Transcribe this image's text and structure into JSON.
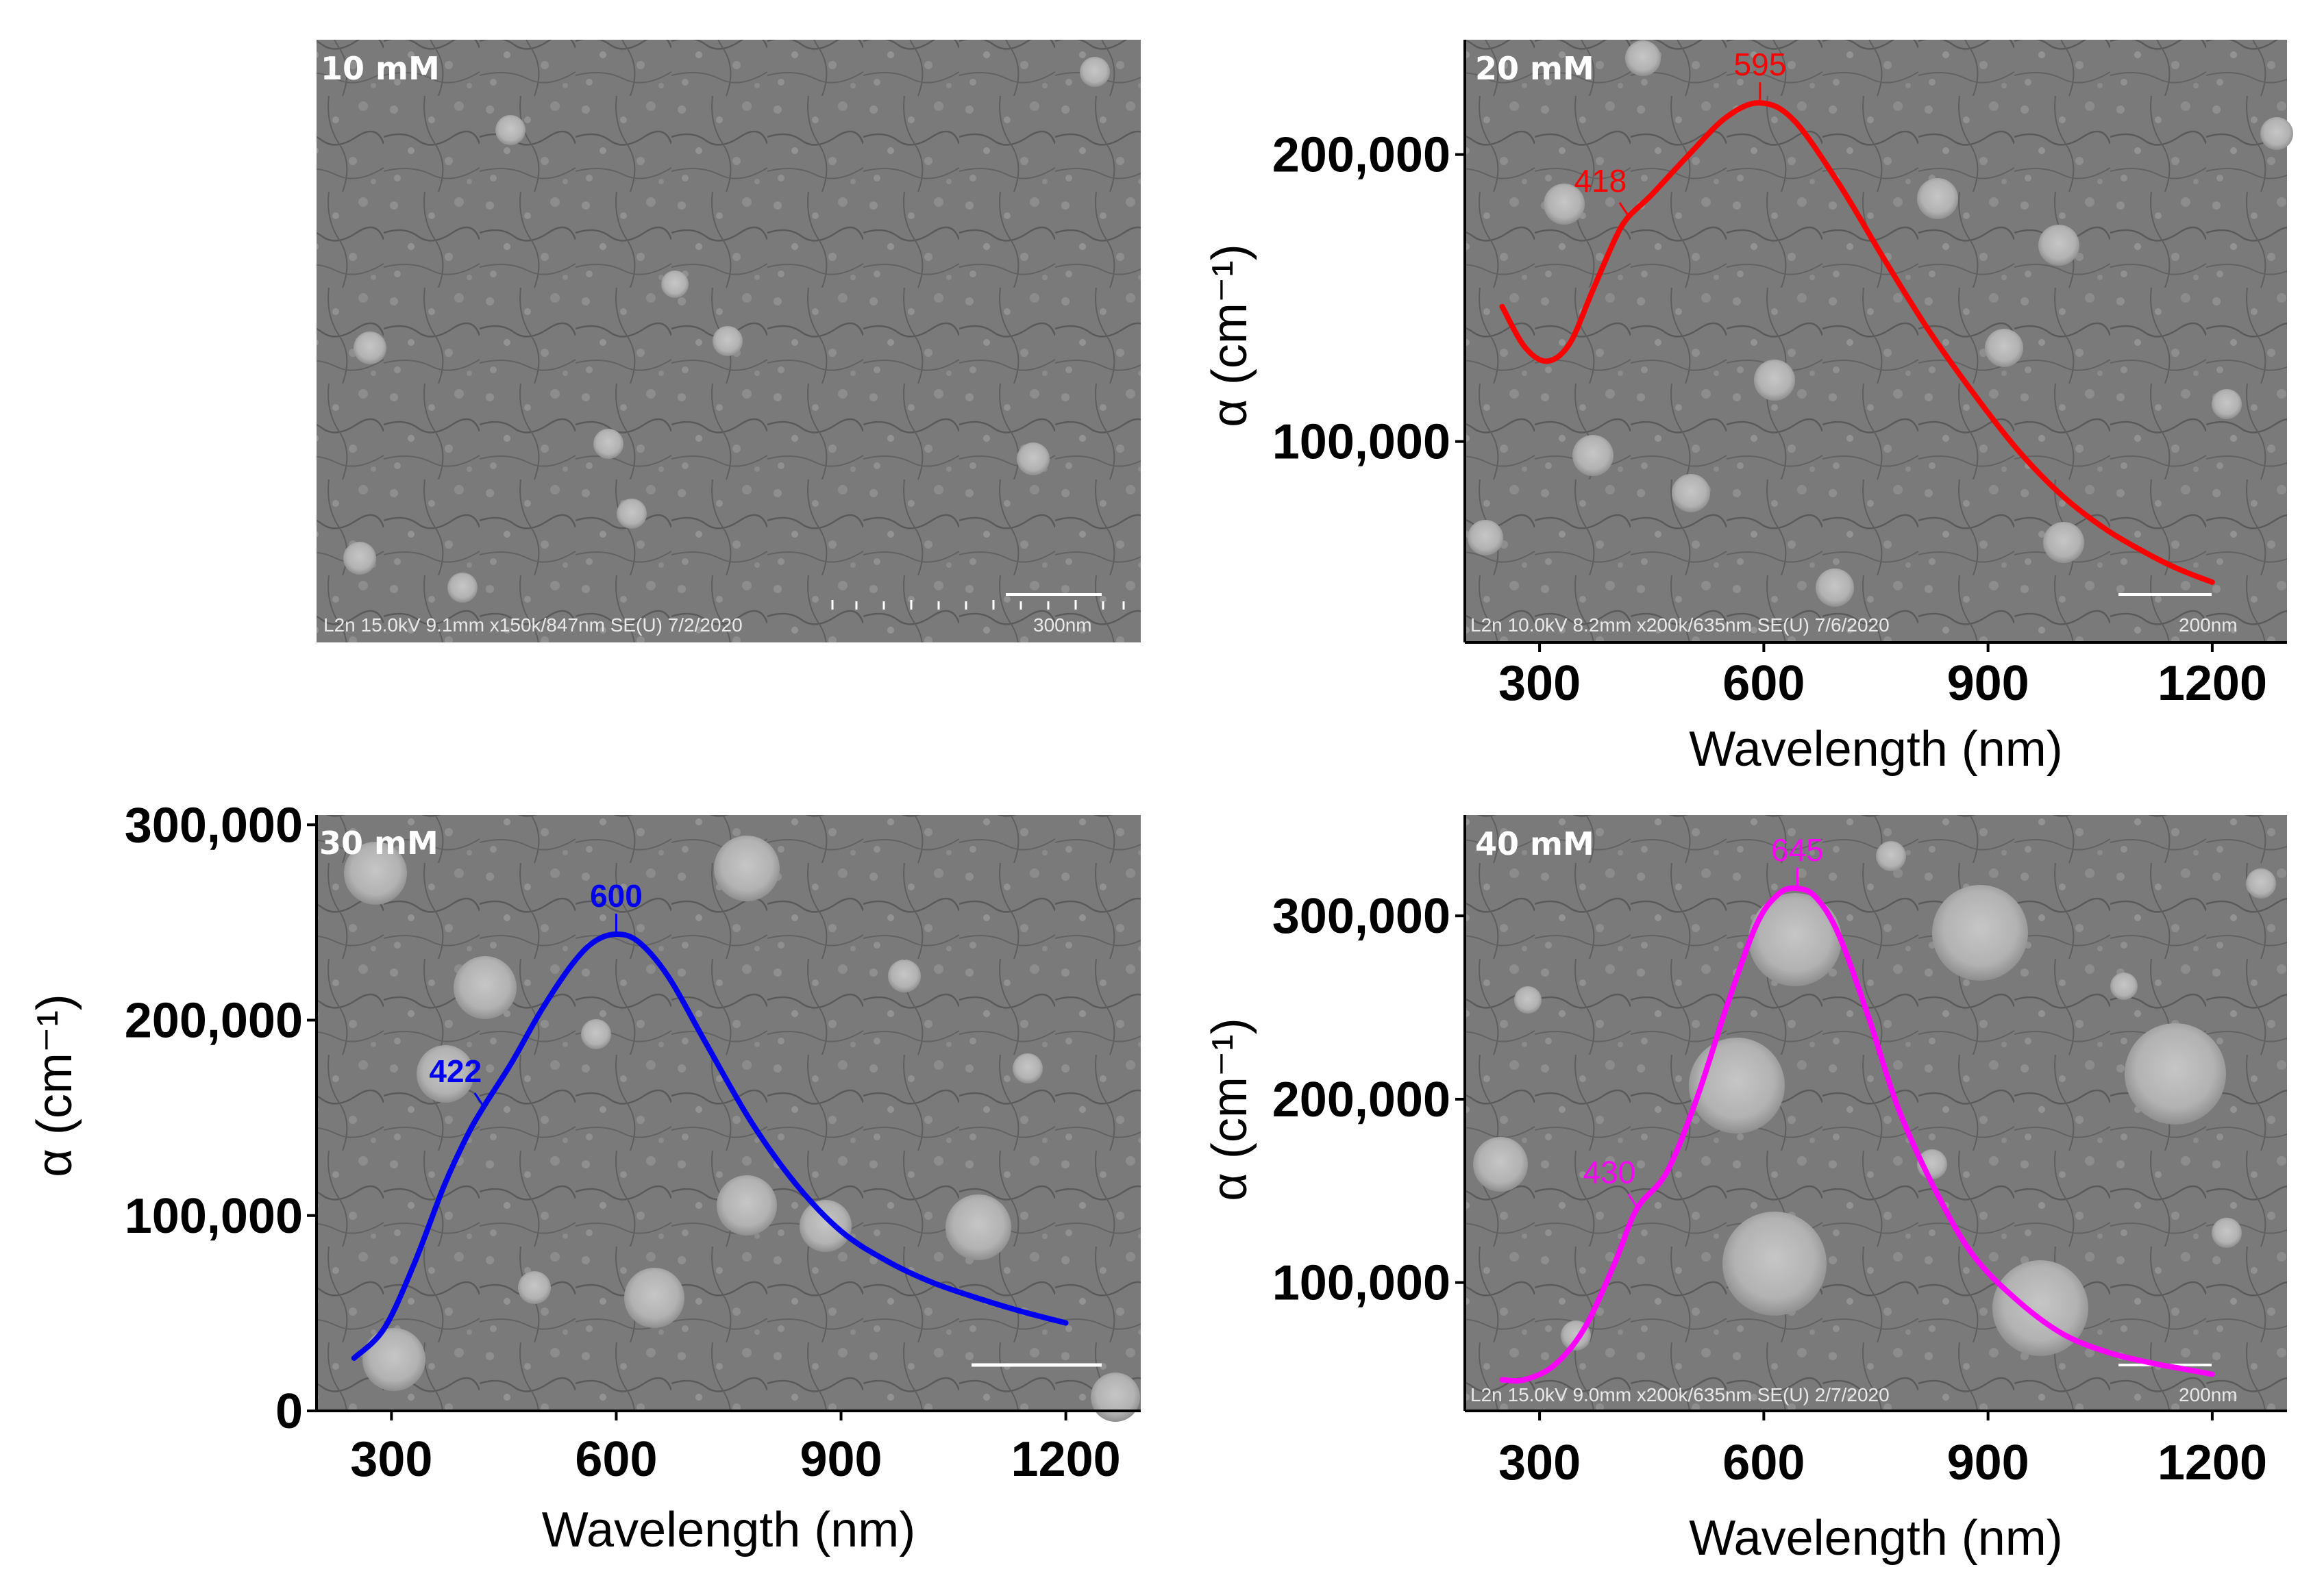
{
  "figure": {
    "panels": [
      {
        "label": "10 mM",
        "sem_info": "L2n 15.0kV 9.1mm x150k/847nm SE(U) 7/2/2020",
        "scale_text": "300nm"
      },
      {
        "label": "20 mM",
        "sem_info": "L2n 10.0kV 8.2mm x200k/635nm SE(U) 7/6/2020",
        "scale_text": "200nm"
      },
      {
        "label": "30 mM",
        "sem_info": "",
        "scale_text": ""
      },
      {
        "label": "40 mM",
        "sem_info": "L2n 15.0kV 9.0mm x200k/635nm SE(U) 2/7/2020",
        "scale_text": "200nm"
      }
    ],
    "colors": {
      "sem_bg": "#7b7b7b",
      "sem_dark": "#4f4f4f",
      "sem_light": "#c9c9c9"
    }
  },
  "chart_data": [
    {
      "type": "line",
      "panel": "20 mM",
      "color": "#ff0000",
      "xlabel": "Wavelength (nm)",
      "ylabel": "α (cm⁻¹)",
      "xlim": [
        200,
        1300
      ],
      "ylim": [
        30000,
        240000
      ],
      "xticks": [
        300,
        600,
        900,
        1200
      ],
      "xtick_labels": [
        "300",
        "600",
        "900",
        "1200"
      ],
      "yticks": [
        100000,
        200000
      ],
      "ytick_labels": [
        "100,000",
        "200,000"
      ],
      "x": [
        250,
        280,
        310,
        340,
        370,
        400,
        418,
        450,
        500,
        550,
        595,
        640,
        700,
        760,
        820,
        880,
        940,
        1000,
        1060,
        1120,
        1160,
        1200
      ],
      "y": [
        147000,
        133000,
        128000,
        134000,
        152000,
        170000,
        178000,
        186000,
        200000,
        213000,
        218000,
        212000,
        190000,
        164000,
        139000,
        117000,
        97000,
        81000,
        69000,
        60000,
        55000,
        51000
      ],
      "annotations": [
        {
          "text": "595",
          "x": 595,
          "y": 218000
        },
        {
          "text": "418",
          "x": 418,
          "y": 178000
        }
      ]
    },
    {
      "type": "line",
      "panel": "30 mM",
      "color": "#0000ee",
      "xlabel": "Wavelength (nm)",
      "ylabel": "α (cm⁻¹)",
      "xlim": [
        200,
        1300
      ],
      "ylim": [
        0,
        305000
      ],
      "xticks": [
        300,
        600,
        900,
        1200
      ],
      "xtick_labels": [
        "300",
        "600",
        "900",
        "1200"
      ],
      "yticks": [
        0,
        100000,
        200000,
        300000
      ],
      "ytick_labels": [
        "0",
        "100,000",
        "200,000",
        "300,000"
      ],
      "x": [
        250,
        290,
        330,
        370,
        400,
        422,
        460,
        500,
        540,
        570,
        600,
        630,
        670,
        720,
        780,
        840,
        900,
        960,
        1020,
        1080,
        1140,
        1200
      ],
      "y": [
        27000,
        42000,
        75000,
        115000,
        140000,
        155000,
        178000,
        205000,
        228000,
        240000,
        244000,
        240000,
        222000,
        188000,
        148000,
        116000,
        92000,
        77000,
        66000,
        58000,
        51000,
        45000
      ],
      "annotations": [
        {
          "text": "600",
          "x": 600,
          "y": 244000
        },
        {
          "text": "422",
          "x": 422,
          "y": 155000
        }
      ]
    },
    {
      "type": "line",
      "panel": "40 mM",
      "color": "#ff00ff",
      "xlabel": "Wavelength (nm)",
      "ylabel": "α (cm⁻¹)",
      "xlim": [
        200,
        1300
      ],
      "ylim": [
        30000,
        355000
      ],
      "xticks": [
        300,
        600,
        900,
        1200
      ],
      "xtick_labels": [
        "300",
        "600",
        "900",
        "1200"
      ],
      "yticks": [
        100000,
        200000,
        300000
      ],
      "ytick_labels": [
        "100,000",
        "200,000",
        "300,000"
      ],
      "x": [
        250,
        280,
        320,
        360,
        400,
        430,
        470,
        510,
        550,
        590,
        620,
        645,
        670,
        700,
        740,
        780,
        830,
        880,
        940,
        1000,
        1060,
        1120,
        1160,
        1200
      ],
      "y": [
        47000,
        47000,
        55000,
        75000,
        110000,
        140000,
        160000,
        200000,
        250000,
        295000,
        312000,
        315000,
        310000,
        290000,
        245000,
        195000,
        150000,
        115000,
        90000,
        72000,
        62000,
        56000,
        53000,
        50000
      ],
      "annotations": [
        {
          "text": "645",
          "x": 645,
          "y": 315000
        },
        {
          "text": "430",
          "x": 430,
          "y": 140000
        }
      ]
    }
  ]
}
